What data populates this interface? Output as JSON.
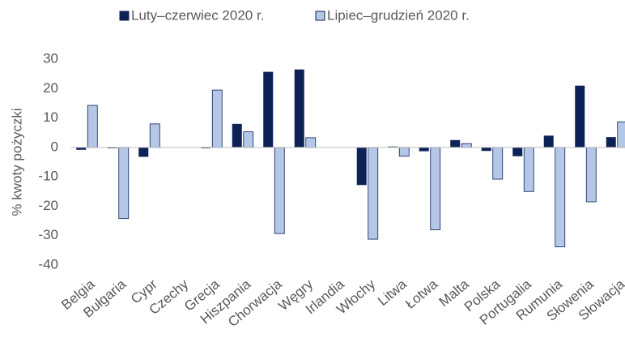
{
  "chart_data": {
    "type": "bar",
    "y_label": "% kwoty pożyczki",
    "categories": [
      "Belgia",
      "Bułgaria",
      "Cypr",
      "Czechy",
      "Grecja",
      "Hiszpania",
      "Chorwacja",
      "Węgry",
      "Irlandia",
      "Włochy",
      "Litwa",
      "Łotwa",
      "Malta",
      "Polska",
      "Portugalia",
      "Rumunia",
      "Słowenia",
      "Słowacja"
    ],
    "series": [
      {
        "name": "Luty–czerwiec 2020 r.",
        "color": "#0c2156",
        "values": [
          -0.8,
          -0.3,
          -3.2,
          0,
          -0.3,
          8,
          25.7,
          26.5,
          0,
          -12.8,
          0.3,
          -1.3,
          2.5,
          -1.2,
          -3,
          4,
          21,
          3.5
        ]
      },
      {
        "name": "Lipiec–grudzień 2020 r.",
        "color": "#b4c7e7",
        "values": [
          14.3,
          -24.2,
          8,
          0,
          19.5,
          5.3,
          -29.3,
          3.3,
          0,
          -31.2,
          -3,
          -28,
          1.3,
          -10.8,
          -15,
          -33.8,
          -18.5,
          8.7
        ]
      }
    ],
    "ylim": [
      -40,
      30
    ],
    "yticks": [
      -40,
      -30,
      -20,
      -10,
      0,
      10,
      20,
      30
    ],
    "legend": "top"
  }
}
